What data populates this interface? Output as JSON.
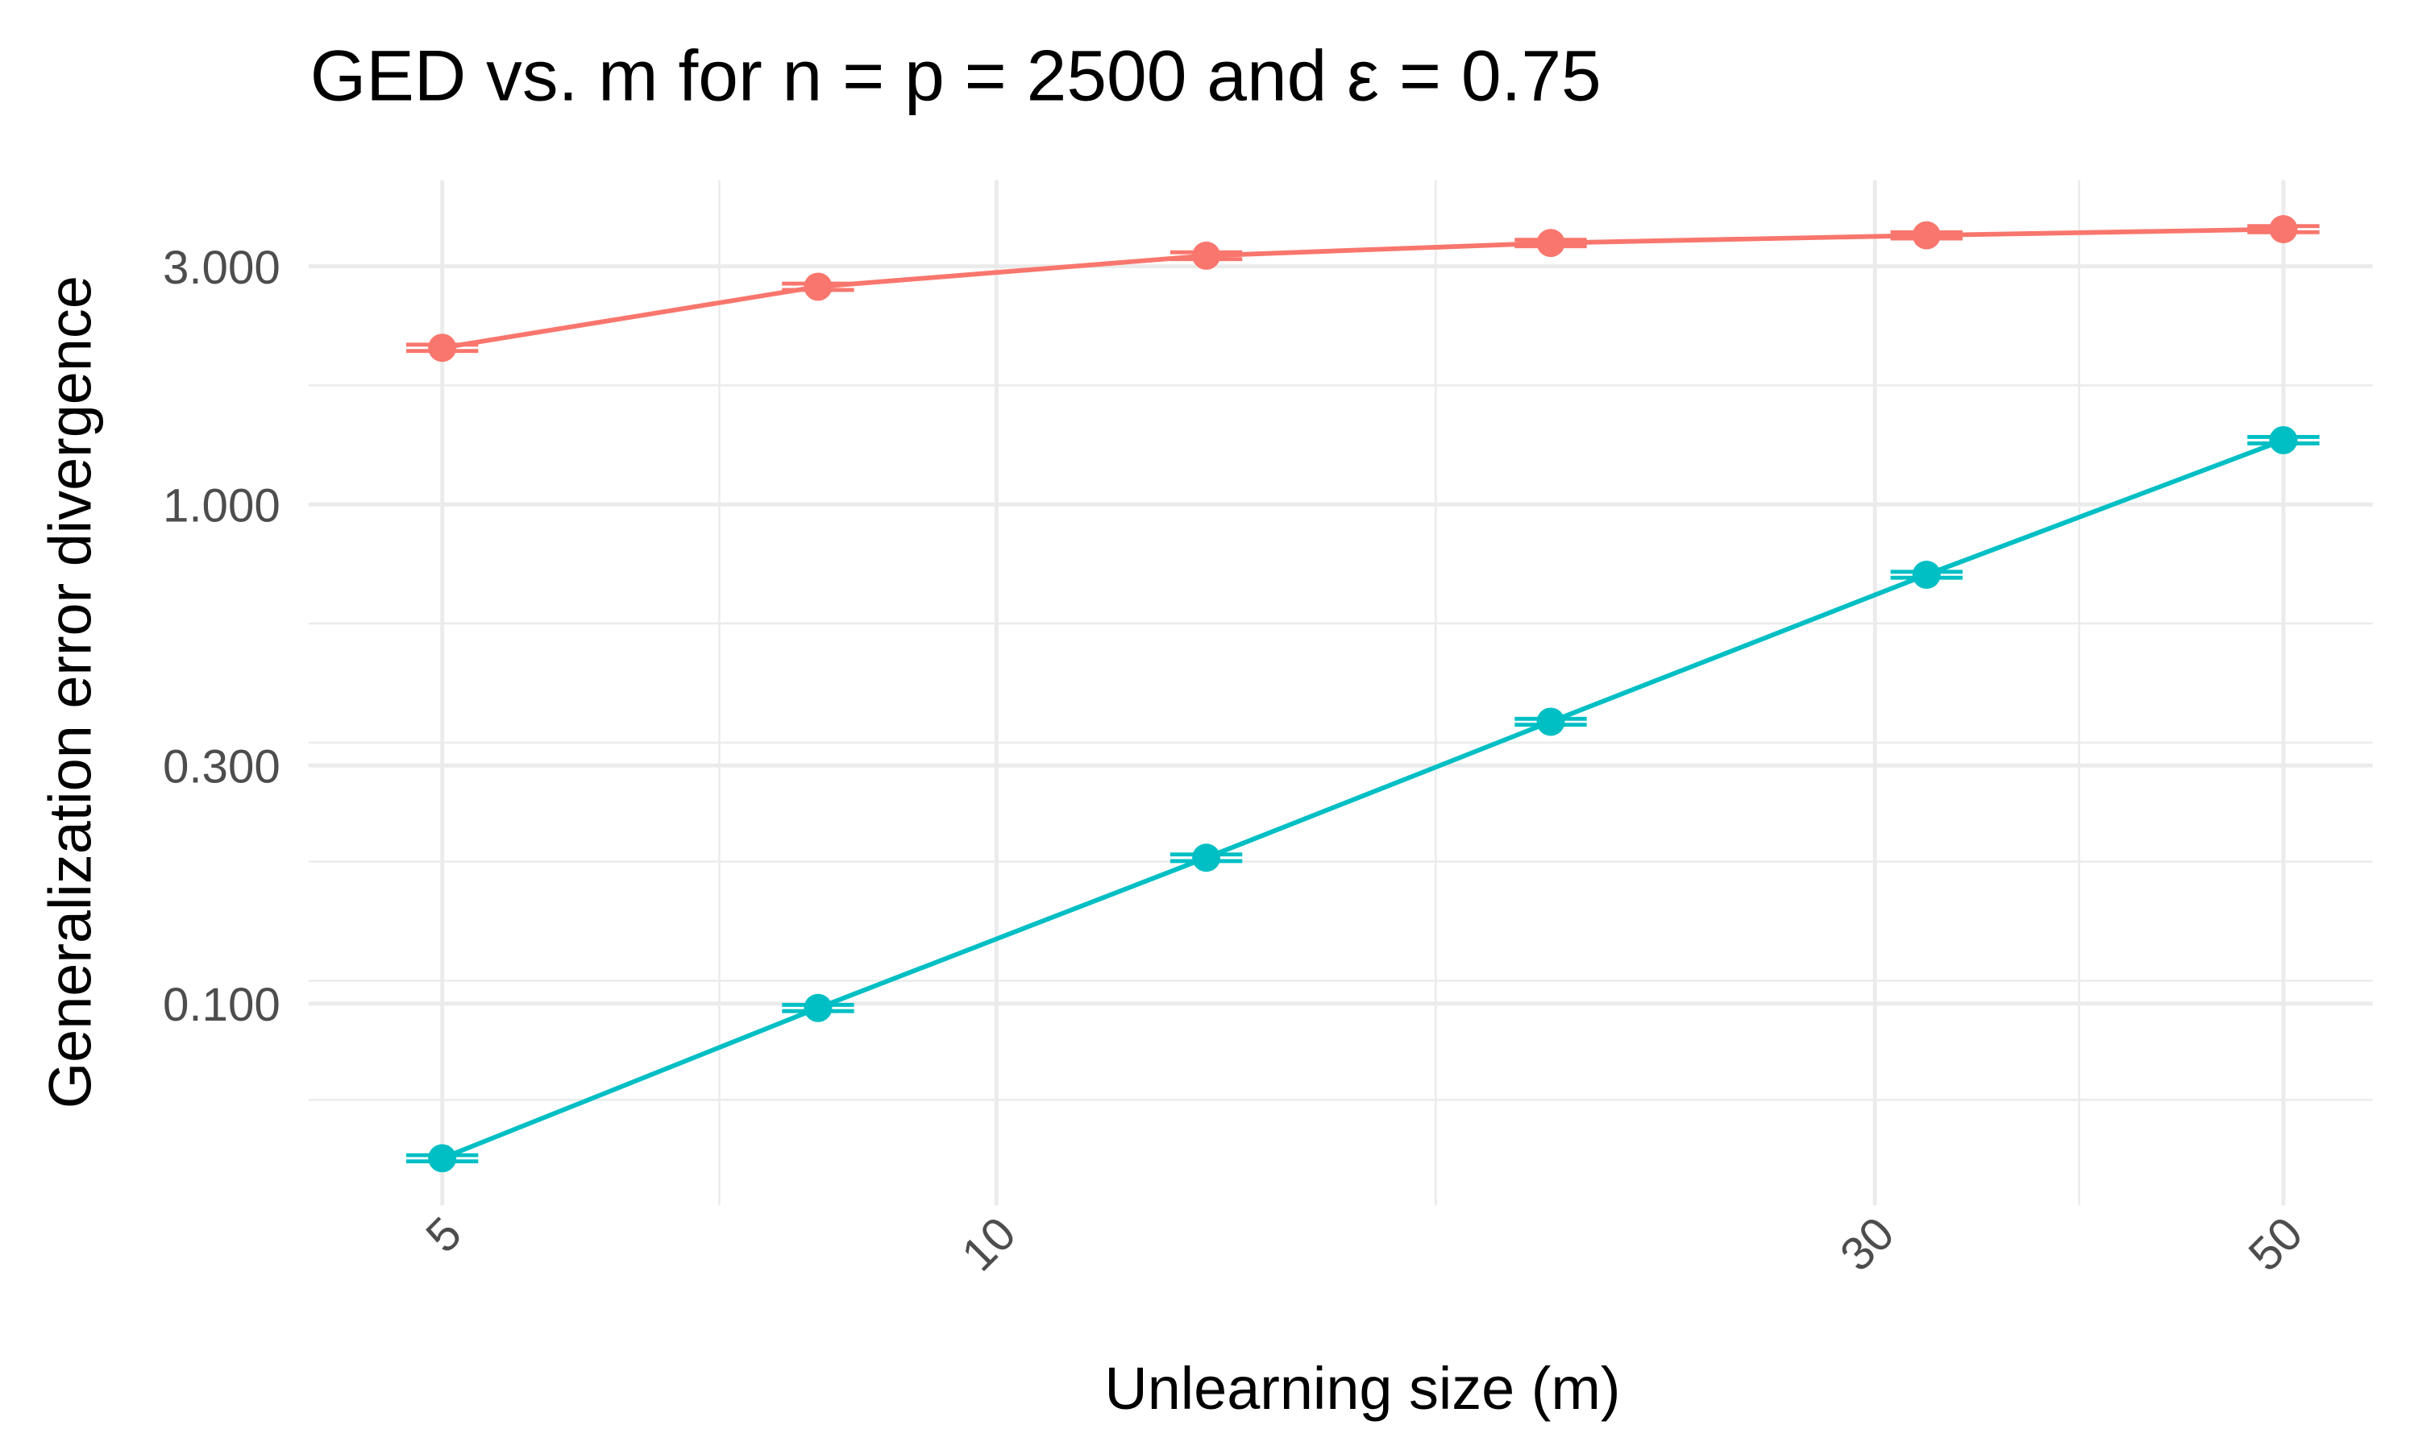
{
  "chart_data": {
    "type": "line",
    "title": "GED vs. m for n = p = 2500 and  ε =  0.75",
    "x_label": "Unlearning size (m)",
    "y_label": "Generalization error divergence",
    "x": [
      5,
      8,
      13,
      20,
      32,
      50
    ],
    "series": [
      {
        "color": "#F8766D",
        "values": [
          2.06,
          2.73,
          3.15,
          3.34,
          3.46,
          3.56
        ],
        "errors": [
          0.03,
          0.04,
          0.05,
          0.05,
          0.05,
          0.05
        ]
      },
      {
        "color": "#00BFC4",
        "values": [
          0.049,
          0.098,
          0.196,
          0.367,
          0.723,
          1.345
        ],
        "errors": [
          0.0007,
          0.0014,
          0.003,
          0.005,
          0.01,
          0.02
        ]
      }
    ],
    "xlim": [
      4.23,
      55.9
    ],
    "ylim": [
      0.0394,
      4.46
    ],
    "xticks": [
      5,
      10,
      30,
      50
    ],
    "yticks": [
      {
        "value": 3,
        "label": "3.000"
      },
      {
        "value": 1,
        "label": "1.000"
      },
      {
        "value": 0.3,
        "label": "0.300"
      },
      {
        "value": 0.1,
        "label": "0.100"
      }
    ],
    "xlog": true,
    "ylog": true,
    "grid": true
  }
}
